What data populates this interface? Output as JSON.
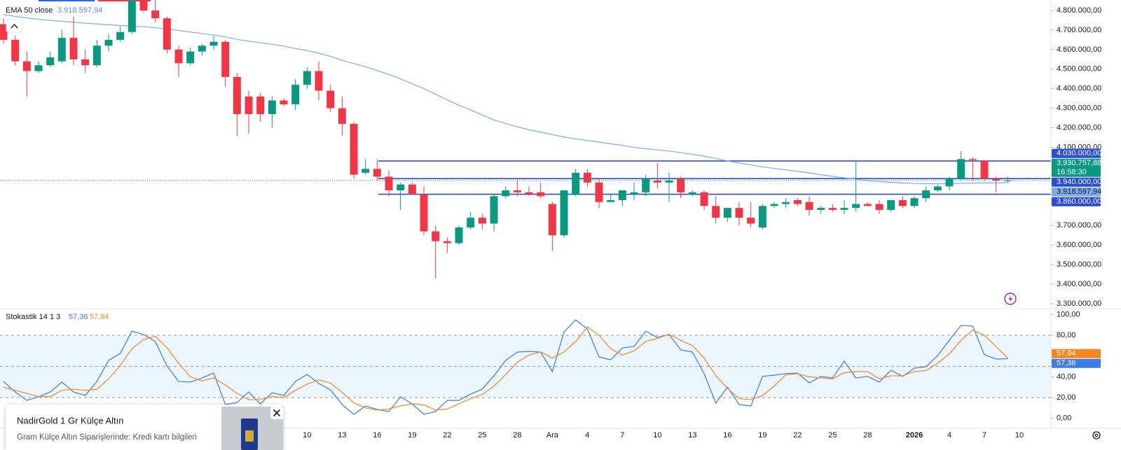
{
  "chart_data": [
    {
      "type": "candlestick",
      "categories": [
        null,
        null,
        null,
        null,
        null,
        null,
        null,
        null,
        null,
        null,
        null,
        null,
        null,
        null,
        null,
        null,
        null,
        null,
        null,
        null,
        null,
        null,
        null,
        null,
        null,
        null,
        "10",
        null,
        null,
        "13",
        null,
        null,
        "16",
        null,
        null,
        "19",
        null,
        null,
        "22",
        null,
        null,
        "25",
        null,
        null,
        "28",
        null,
        null,
        "Ara",
        null,
        null,
        "4",
        null,
        null,
        "7",
        null,
        null,
        "10",
        null,
        null,
        "13",
        null,
        null,
        "16",
        null,
        null,
        "19",
        null,
        null,
        "22",
        null,
        null,
        "25",
        null,
        null,
        "28",
        null,
        null,
        null,
        "2026",
        null,
        null,
        "4",
        null,
        null,
        "7",
        null,
        null,
        "10"
      ],
      "open": [
        4730000,
        4650000,
        4540000,
        4490000,
        4520000,
        4540000,
        4660000,
        4550000,
        4520000,
        4620000,
        4650000,
        4690000,
        4850000,
        4800000,
        4760000,
        4600000,
        4530000,
        4590000,
        4620000,
        4640000,
        4460000,
        4360000,
        4360000,
        4270000,
        4340000,
        4320000,
        4420000,
        4490000,
        4390000,
        4300000,
        4220000,
        3970000,
        3990000,
        3950000,
        3880000,
        3910000,
        3860000,
        3670000,
        3620000,
        3610000,
        3690000,
        3740000,
        3710000,
        3850000,
        3880000,
        3870000,
        3870000,
        3810000,
        3650000,
        3860000,
        3970000,
        3920000,
        3820000,
        3830000,
        3860000,
        3870000,
        3930000,
        3920000,
        3940000,
        3860000,
        3870000,
        3800000,
        3740000,
        3790000,
        3740000,
        3690000,
        3800000,
        3810000,
        3830000,
        3820000,
        3780000,
        3790000,
        3780000,
        3790000,
        3810000,
        3810000,
        3780000,
        3830000,
        3800000,
        3840000,
        3880000,
        3900000,
        3940000,
        4040000,
        4030000,
        3940000,
        3930000,
        null
      ],
      "high": [
        4760000,
        4670000,
        4590000,
        4540000,
        4590000,
        4700000,
        4770000,
        4600000,
        4650000,
        4680000,
        4720000,
        4860000,
        4860000,
        4860000,
        4770000,
        4620000,
        4610000,
        4630000,
        4670000,
        4650000,
        4480000,
        4390000,
        4380000,
        4360000,
        4350000,
        4450000,
        4510000,
        4540000,
        4420000,
        4360000,
        4230000,
        4040000,
        4040000,
        3980000,
        3920000,
        3920000,
        3900000,
        3700000,
        3640000,
        3700000,
        3770000,
        3760000,
        3860000,
        3900000,
        3940000,
        3900000,
        3920000,
        3820000,
        3880000,
        3990000,
        3990000,
        3940000,
        3860000,
        3880000,
        3920000,
        3960000,
        4020000,
        3970000,
        3950000,
        3880000,
        3880000,
        3850000,
        3790000,
        3820000,
        3820000,
        3810000,
        3820000,
        3840000,
        3840000,
        3850000,
        3800000,
        3810000,
        3830000,
        4030000,
        3820000,
        3830000,
        3830000,
        3850000,
        3850000,
        3900000,
        3910000,
        3950000,
        4080000,
        4050000,
        4030000,
        3950000,
        3950000,
        null
      ],
      "low": [
        4630000,
        4520000,
        4360000,
        4480000,
        4510000,
        4530000,
        4520000,
        4480000,
        4510000,
        4590000,
        4640000,
        4680000,
        4790000,
        4740000,
        4580000,
        4460000,
        4520000,
        4570000,
        4600000,
        4410000,
        4160000,
        4170000,
        4230000,
        4200000,
        4310000,
        4290000,
        4400000,
        4340000,
        4280000,
        4160000,
        3940000,
        3960000,
        3930000,
        3850000,
        3780000,
        3860000,
        3650000,
        3430000,
        3560000,
        3600000,
        3680000,
        3680000,
        3670000,
        3840000,
        3850000,
        3850000,
        3840000,
        3570000,
        3640000,
        3850000,
        3900000,
        3790000,
        3820000,
        3800000,
        3830000,
        3850000,
        3890000,
        3820000,
        3840000,
        3850000,
        3780000,
        3710000,
        3720000,
        3700000,
        3690000,
        3680000,
        3790000,
        3790000,
        3800000,
        3750000,
        3760000,
        3770000,
        3760000,
        3770000,
        3800000,
        3760000,
        3770000,
        3790000,
        3790000,
        3820000,
        3870000,
        3880000,
        3930000,
        3930000,
        3930000,
        3870000,
        3920000,
        null
      ],
      "close": [
        4650000,
        4540000,
        4490000,
        4520000,
        4560000,
        4660000,
        4550000,
        4520000,
        4620000,
        4650000,
        4690000,
        4850000,
        4800000,
        4760000,
        4600000,
        4530000,
        4590000,
        4620000,
        4640000,
        4460000,
        4270000,
        4270000,
        4270000,
        4340000,
        4320000,
        4420000,
        4490000,
        4390000,
        4300000,
        4220000,
        3960000,
        3990000,
        3950000,
        3880000,
        3910000,
        3860000,
        3670000,
        3620000,
        3610000,
        3690000,
        3740000,
        3710000,
        3850000,
        3880000,
        3870000,
        3860000,
        3850000,
        3650000,
        3880000,
        3970000,
        3920000,
        3820000,
        3830000,
        3880000,
        3870000,
        3940000,
        3920000,
        3930000,
        3870000,
        3870000,
        3800000,
        3740000,
        3790000,
        3740000,
        3710000,
        3800000,
        3810000,
        3820000,
        3810000,
        3780000,
        3790000,
        3780000,
        3790000,
        3810000,
        3800000,
        3780000,
        3830000,
        3800000,
        3840000,
        3880000,
        3900000,
        3940000,
        4040000,
        4035000,
        3940000,
        3930000,
        3930757.88,
        null
      ],
      "close_label": "3.930.757,88",
      "countdown": "16:58:30",
      "colors": {
        "up": "#089981",
        "down": "#f23645"
      },
      "series": [
        {
          "name": "EMA 50 close",
          "color": "#7cade6",
          "last_label": "3.918.597,94",
          "values": [
            4780000,
            4770000,
            4762000,
            4755000,
            4750000,
            4745000,
            4740000,
            4735000,
            4731000,
            4727000,
            4723000,
            4720000,
            4717000,
            4712000,
            4705000,
            4698000,
            4690000,
            4682000,
            4675000,
            4665000,
            4652000,
            4643000,
            4635000,
            4627000,
            4618000,
            4605000,
            4595000,
            4582000,
            4565000,
            4545000,
            4528000,
            4512000,
            4493000,
            4473000,
            4450000,
            4425000,
            4400000,
            4372000,
            4343000,
            4315000,
            4292000,
            4265000,
            4240000,
            4222000,
            4205000,
            4190000,
            4178000,
            4165000,
            4153000,
            4143000,
            4135000,
            4127000,
            4118000,
            4110000,
            4100000,
            4093000,
            4087000,
            4081000,
            4073000,
            4064000,
            4055000,
            4043000,
            4030000,
            4020000,
            4010000,
            4000000,
            3992000,
            3985000,
            3977000,
            3969000,
            3960000,
            3952000,
            3944000,
            3937000,
            3930000,
            3925000,
            3921000,
            3918000,
            3915000,
            3914000,
            3914000,
            3914000,
            3916000,
            3917000,
            3918000,
            3918300,
            3918597.94,
            null
          ]
        }
      ],
      "hlines": [
        {
          "value": 4030000,
          "label": "4.030.000,00"
        },
        {
          "value": 3940000,
          "label": "3.940.000,00"
        },
        {
          "value": 3860000,
          "label": "3.860.000,00"
        }
      ],
      "hline_color": "#2a4bd7",
      "ylim": [
        3278500,
        4853700
      ],
      "yticks": [
        {
          "value": 3300000,
          "label": "3.300.000,00"
        },
        {
          "value": 3400000,
          "label": "3.400.000,00"
        },
        {
          "value": 3500000,
          "label": "3.500.000,00"
        },
        {
          "value": 3600000,
          "label": "3.600.000,00"
        },
        {
          "value": 3700000,
          "label": "3.700.000,00"
        },
        {
          "value": 4100000,
          "label": "4.100.000,00"
        },
        {
          "value": 4200000,
          "label": "4.200.000,00"
        },
        {
          "value": 4300000,
          "label": "4.300.000,00"
        },
        {
          "value": 4400000,
          "label": "4.400.000,00"
        },
        {
          "value": 4500000,
          "label": "4.500.000,00"
        },
        {
          "value": 4600000,
          "label": "4.600.000,00"
        },
        {
          "value": 4700000,
          "label": "4.700.000,00"
        },
        {
          "value": 4800000,
          "label": "4.800.000,00"
        }
      ]
    },
    {
      "type": "line",
      "title": "Stokastik 14 1 3",
      "series": [
        {
          "color": "#3d7be8",
          "last_label": "57,36",
          "values": [
            35.5,
            25.4,
            17.3,
            20.7,
            25.4,
            34.9,
            25.4,
            22,
            35.5,
            55.8,
            62.5,
            84,
            80.7,
            74,
            50.4,
            35.5,
            34.9,
            38.9,
            43.6,
            13.3,
            15.3,
            25.4,
            13.9,
            24.7,
            22,
            35.5,
            42.3,
            33.5,
            27.4,
            13.3,
            3.8,
            11.9,
            8.6,
            6.5,
            20.7,
            13.9,
            3.8,
            6.5,
            17.3,
            17.3,
            23.4,
            28.1,
            40.9,
            55.8,
            63.8,
            64.5,
            63.8,
            45,
            83.3,
            94.8,
            86.1,
            59.1,
            56.4,
            67.8,
            69.2,
            84,
            77.9,
            80.7,
            65.9,
            63.8,
            43,
            14.6,
            30.1,
            13.3,
            11.9,
            40.4,
            41.6,
            43,
            43.6,
            34.2,
            40.4,
            38.9,
            55.1,
            38.9,
            40.4,
            34.9,
            46.3,
            40.4,
            48.3,
            49.7,
            60.5,
            75.3,
            89.5,
            88.8,
            61.2,
            57.1,
            57.36,
            null
          ]
        },
        {
          "color": "#f7861f",
          "last_label": "57,94",
          "values": [
            30,
            27,
            24,
            21,
            21,
            27,
            28,
            27,
            28,
            38,
            51,
            67,
            76,
            79,
            68,
            53,
            40,
            36,
            39,
            32,
            24,
            18,
            18,
            21,
            20,
            27,
            33,
            37,
            34,
            25,
            15,
            10,
            8,
            9,
            12,
            14,
            13,
            8,
            9,
            14,
            19,
            23,
            31,
            42,
            54,
            61,
            64,
            58,
            64,
            74,
            88,
            80,
            67,
            61,
            65,
            74,
            77,
            81,
            75,
            70,
            58,
            41,
            29,
            19,
            18,
            22,
            31,
            42,
            43,
            40,
            39,
            38,
            44,
            45,
            45,
            38,
            41,
            41,
            45,
            46,
            53,
            62,
            75,
            85,
            80,
            69,
            57.94,
            null
          ]
        }
      ],
      "levels": [
        20,
        50,
        80
      ],
      "ylim": [
        -9.6,
        104.3
      ],
      "yticks": [
        {
          "value": 0,
          "label": "0,00"
        },
        {
          "value": 20,
          "label": "20,00"
        },
        {
          "value": 40,
          "label": "40,00"
        },
        {
          "value": 80,
          "label": "80,00"
        },
        {
          "value": 100,
          "label": "100,00"
        }
      ]
    }
  ],
  "ad": {
    "title": "NadirGold 1 Gr Külçe Altın",
    "text": "Gram Külçe Altın Siparişlerinde: Kredi kartı bilgileri"
  }
}
